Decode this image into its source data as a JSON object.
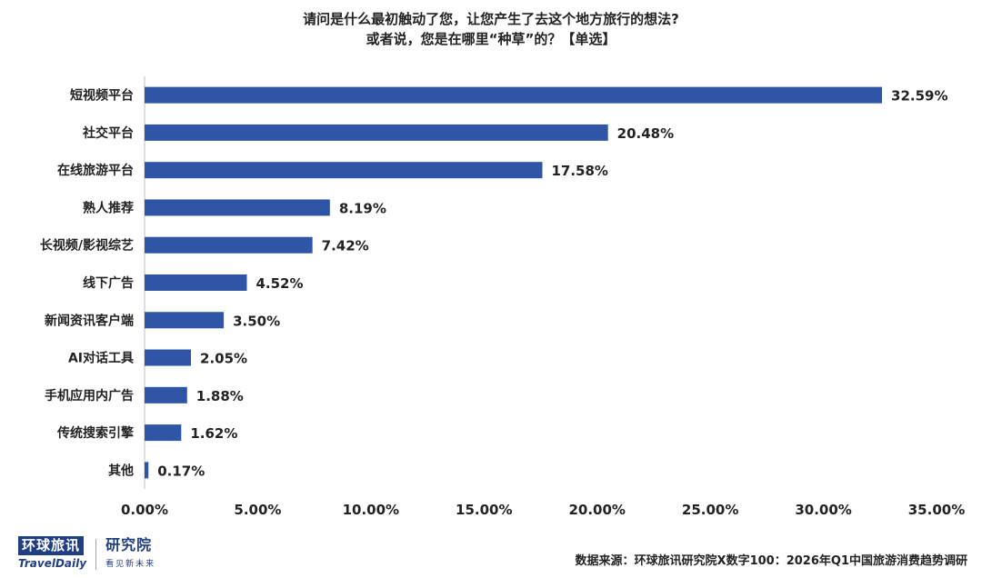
{
  "title_line1": "请问是什么最初触动了您，让您产生了去这个地方旅行的想法?",
  "title_line2": "或者说，您是在哪里“种草”的？【单选】",
  "chart_data": {
    "type": "bar",
    "orientation": "horizontal",
    "categories": [
      "短视频平台",
      "社交平台",
      "在线旅游平台",
      "熟人推荐",
      "长视频/影视综艺",
      "线下广告",
      "新闻资讯客户端",
      "AI对话工具",
      "手机应用内广告",
      "传统搜索引擎",
      "其他"
    ],
    "values": [
      32.59,
      20.48,
      17.58,
      8.19,
      7.42,
      4.52,
      3.5,
      2.05,
      1.88,
      1.62,
      0.17
    ],
    "value_labels": [
      "32.59%",
      "20.48%",
      "17.58%",
      "8.19%",
      "7.42%",
      "4.52%",
      "3.50%",
      "2.05%",
      "1.88%",
      "1.62%",
      "0.17%"
    ],
    "x_ticks": [
      0,
      5,
      10,
      15,
      20,
      25,
      30,
      35
    ],
    "x_tick_labels": [
      "0.00%",
      "5.00%",
      "10.00%",
      "15.00%",
      "20.00%",
      "25.00%",
      "30.00%",
      "35.00%"
    ],
    "xlim": [
      0,
      35
    ],
    "grid": false,
    "bar_color": "#2f56a6"
  },
  "logo": {
    "cn": "环球旅讯",
    "en": "TravelDaily",
    "institute": "研究院",
    "slogan": "看见新未来"
  },
  "source": "数据来源：环球旅讯研究院X数字100：2026年Q1中国旅游消费趋势调研"
}
